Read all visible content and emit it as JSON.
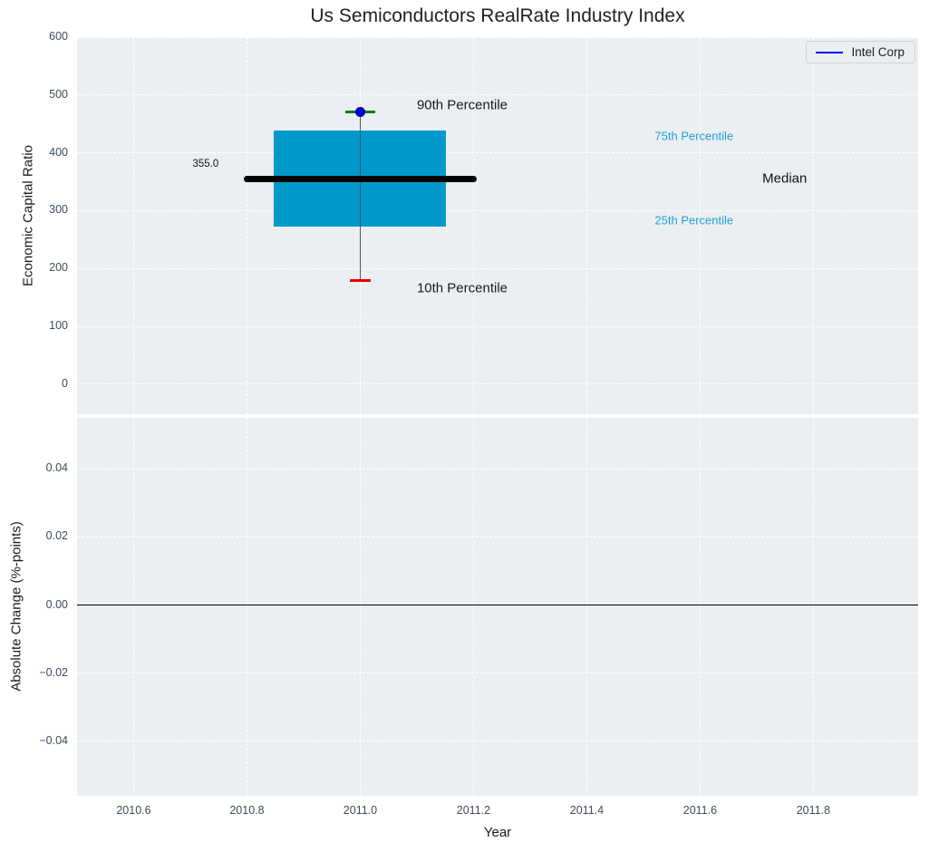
{
  "title": "Us Semiconductors RealRate Industry Index",
  "legend": {
    "label": "Intel Corp"
  },
  "colors": {
    "plot_bg": "#eceff1",
    "grid_line": "#ffffff",
    "box_fill": "#0099cc",
    "median_line": "#000000",
    "whisker": "#555555",
    "upper_cap": "#008000",
    "lower_cap": "#e60000",
    "intel_marker": "#0000dd",
    "intel_marker_edge": "#000080",
    "intel_line": "#0000ee",
    "zero_line": "#000000",
    "tick_label": "#3d4b5c",
    "axis_label": "#1a1a1a",
    "title": "#222222",
    "percentile_label": "#1f9fd6"
  },
  "chart_data": [
    {
      "type": "box",
      "title": "Us Semiconductors RealRate Industry Index",
      "ylabel": "Economic Capital Ratio",
      "xlabel": "",
      "xlim": [
        2010.5,
        2011.985
      ],
      "ylim": [
        -52,
        600
      ],
      "grid": true,
      "xticks": {
        "values": [
          2010.6,
          2010.8,
          2011.0,
          2011.2,
          2011.4,
          2011.6,
          2011.8
        ],
        "labels": [
          "2010.6",
          "2010.8",
          "2011.0",
          "2011.2",
          "2011.4",
          "2011.6",
          "2011.8"
        ],
        "show_labels": false
      },
      "yticks": {
        "values": [
          0,
          100,
          200,
          300,
          400,
          500,
          600
        ],
        "labels": [
          "0",
          "100",
          "200",
          "300",
          "400",
          "500",
          "600"
        ]
      },
      "legend": {
        "position": "upper right",
        "entries": [
          {
            "label": "Intel Corp",
            "marker": "line"
          }
        ]
      },
      "box": {
        "x": 2011.0,
        "p10": 179,
        "p25": 273,
        "median": 355,
        "p75": 438,
        "p90": 470,
        "intel_marker": {
          "x": 2011.0,
          "y": 470
        },
        "box_halfwidth": 0.152,
        "median_halfwidth": 0.205,
        "upper_cap_halfwidth": 0.026,
        "lower_cap_halfwidth": 0.018
      },
      "annotations": [
        {
          "text": "90th Percentile",
          "x": 2011.1,
          "y": 482,
          "ha": "left",
          "color": "#1a1a1a",
          "size": 15
        },
        {
          "text": "10th Percentile",
          "x": 2011.1,
          "y": 166,
          "ha": "left",
          "color": "#1a1a1a",
          "size": 15
        },
        {
          "text": "355.0",
          "x": 2010.75,
          "y": 381,
          "ha": "right",
          "color": "#111111",
          "size": 11.5
        },
        {
          "text": "75th Percentile",
          "x": 2011.52,
          "y": 429,
          "ha": "left",
          "color": "#1f9fd6",
          "size": 13
        },
        {
          "text": "Median",
          "x": 2011.71,
          "y": 355,
          "ha": "left",
          "color": "#111111",
          "size": 15
        },
        {
          "text": "25th Percentile",
          "x": 2011.52,
          "y": 284,
          "ha": "left",
          "color": "#1f9fd6",
          "size": 13
        }
      ]
    },
    {
      "type": "line",
      "ylabel": "Absolute Change (%-points)",
      "xlabel": "Year",
      "xlim": [
        2010.5,
        2011.985
      ],
      "ylim": [
        -0.056,
        0.055
      ],
      "grid": true,
      "xticks": {
        "values": [
          2010.6,
          2010.8,
          2011.0,
          2011.2,
          2011.4,
          2011.6,
          2011.8
        ],
        "labels": [
          "2010.6",
          "2010.8",
          "2011.0",
          "2011.2",
          "2011.4",
          "2011.6",
          "2011.8"
        ],
        "show_labels": true
      },
      "yticks": {
        "values": [
          0.04,
          0.02,
          0.0,
          -0.02,
          -0.04
        ],
        "labels": [
          "0.04",
          "0.02",
          "0.00",
          "−0.02",
          "−0.04"
        ]
      },
      "zero_line_y": 0.0,
      "series": []
    }
  ]
}
